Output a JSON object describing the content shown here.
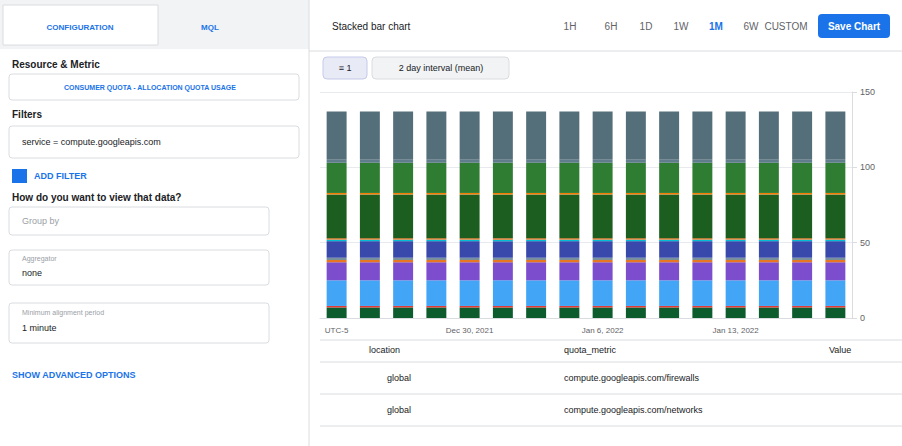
{
  "chart_data": {
    "type": "bar",
    "stacked": true,
    "grid": true,
    "categories": [
      "UTC-5",
      null,
      null,
      null,
      "Dec 30, 2021",
      null,
      null,
      null,
      "Jan 6, 2022",
      null,
      null,
      null,
      "Jan 13, 2022",
      null,
      null,
      null
    ],
    "series": [
      {
        "color": "#0d5c2e",
        "values": [
          7,
          7,
          7,
          7,
          7,
          7,
          7,
          7,
          7,
          7,
          7,
          7,
          7,
          7,
          7,
          7
        ]
      },
      {
        "color": "#e53935",
        "values": [
          1,
          1,
          1,
          1,
          1,
          1,
          1,
          1,
          1,
          1,
          1,
          1,
          1,
          1,
          1,
          1
        ]
      },
      {
        "color": "#42a5f5",
        "values": [
          17,
          17,
          17,
          17,
          17,
          17,
          17,
          17,
          17,
          17,
          17,
          17,
          17,
          17,
          17,
          17
        ]
      },
      {
        "color": "#7c4dcc",
        "values": [
          12,
          12,
          12,
          12,
          12,
          12,
          12,
          12,
          12,
          12,
          12,
          12,
          12,
          12,
          12,
          12
        ]
      },
      {
        "color": "#e87722",
        "values": [
          1.5,
          1.5,
          1.5,
          1.5,
          1.5,
          1.5,
          1.5,
          1.5,
          1.5,
          1.5,
          1.5,
          1.5,
          1.5,
          1.5,
          1.5,
          1.5
        ]
      },
      {
        "color": "#78909c",
        "values": [
          1.5,
          1.5,
          1.5,
          1.5,
          1.5,
          1.5,
          1.5,
          1.5,
          1.5,
          1.5,
          1.5,
          1.5,
          1.5,
          1.5,
          1.5,
          1.5
        ]
      },
      {
        "color": "#3949ab",
        "values": [
          11,
          11,
          11,
          11,
          11,
          11,
          11,
          11,
          11,
          11,
          11,
          11,
          11,
          11,
          11,
          11
        ]
      },
      {
        "color": "#00bcd4",
        "values": [
          1,
          1,
          1,
          1,
          1,
          1,
          1,
          1,
          1,
          1,
          1,
          1,
          1,
          1,
          1,
          1
        ]
      },
      {
        "color": "#e87722",
        "values": [
          1,
          1,
          1,
          1,
          1,
          1,
          1,
          1,
          1,
          1,
          1,
          1,
          1,
          1,
          1,
          1
        ]
      },
      {
        "color": "#1b5e20",
        "values": [
          29,
          29,
          29,
          29,
          29,
          29,
          29,
          29,
          29,
          29,
          29,
          29,
          29,
          29,
          29,
          29
        ]
      },
      {
        "color": "#f57c00",
        "values": [
          1,
          1,
          1,
          1,
          1,
          1,
          1,
          1,
          1,
          1,
          1,
          1,
          1,
          1,
          1,
          1
        ]
      },
      {
        "color": "#2e7d32",
        "values": [
          20,
          20,
          20,
          20,
          20,
          20,
          20,
          20,
          20,
          20,
          20,
          20,
          20,
          20,
          20,
          20
        ]
      },
      {
        "color": "#607d8b",
        "values": [
          2,
          2,
          2,
          2,
          2,
          2,
          2,
          2,
          2,
          2,
          2,
          2,
          2,
          2,
          2,
          2
        ]
      },
      {
        "color": "#546e7a",
        "values": [
          32,
          32,
          32,
          32,
          32,
          32,
          32,
          32,
          32,
          32,
          32,
          32,
          32,
          32,
          32,
          32
        ]
      }
    ],
    "ylim": [
      0,
      150
    ],
    "yticks": [
      0,
      50,
      100,
      150
    ],
    "annotations": [
      "CONFIGURATION",
      "MQL",
      "Resource & Metric",
      "CONSUMER QUOTA - ALLOCATION QUOTA USAGE",
      "Filters",
      "service = compute.googleapis.com",
      "ADD FILTER",
      "How do you want to view that data?",
      "Group by",
      "Aggregator",
      "none",
      "Minimum alignment period",
      "1 minute",
      "SHOW ADVANCED OPTIONS",
      "Stacked bar chart",
      "1H",
      "6H",
      "1D",
      "1W",
      "1M",
      "6W",
      "CUSTOM",
      "Save Chart",
      "≡ 1",
      "2 day interval (mean)",
      "location",
      "quota_metric",
      "Value",
      "global",
      "compute.googleapis.com/firewalls",
      "global",
      "compute.googleapis.com/networks"
    ]
  }
}
